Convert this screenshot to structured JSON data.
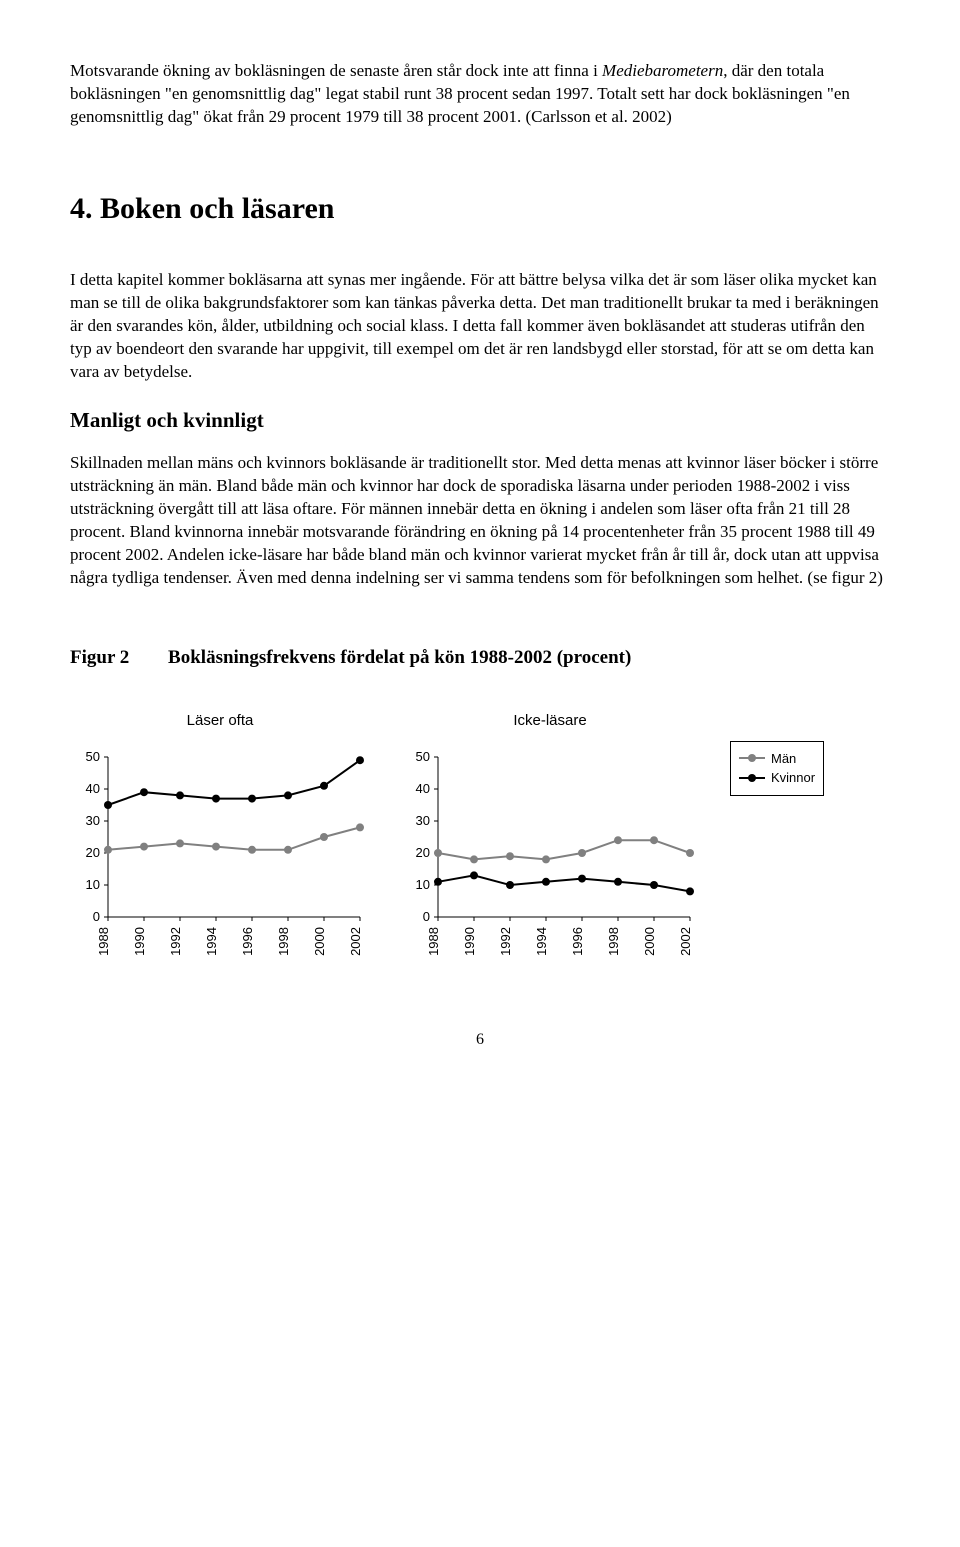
{
  "para1": "Motsvarande ökning av bokläsningen de senaste åren står dock inte att finna i ",
  "para1_italic": "Mediebarometern",
  "para1_after": ", där den totala bokläsningen \"en genomsnittlig dag\" legat stabil runt 38 procent sedan 1997. Totalt sett har dock bokläsningen \"en genomsnittlig dag\" ökat från 29 procent 1979 till 38 procent 2001. (Carlsson et al. 2002)",
  "section_title": "4. Boken och läsaren",
  "para2": "I detta kapitel kommer bokläsarna att synas mer ingående. För att bättre belysa vilka det är som läser olika mycket kan man se till de olika bakgrundsfaktorer som kan tänkas påverka detta. Det man traditionellt brukar ta med i beräkningen är den svarandes kön, ålder, utbildning och social klass. I detta fall kommer även bokläsandet att studeras utifrån den typ av boendeort den svarande har uppgivit, till exempel om det är ren landsbygd eller storstad, för att se om detta kan vara av betydelse.",
  "sub_title": "Manligt och kvinnligt",
  "para3": "Skillnaden mellan mäns och kvinnors bokläsande är traditionellt stor. Med detta menas att kvinnor läser böcker i större utsträckning än män. Bland både män och kvinnor har dock de sporadiska läsarna under perioden 1988-2002 i viss utsträckning övergått till att läsa oftare. För männen innebär detta en ökning i andelen som läser ofta från 21 till 28 procent. Bland kvinnorna innebär motsvarande förändring en ökning på 14 procentenheter från 35 procent 1988 till 49 procent 2002. Andelen icke-läsare har både bland män och kvinnor varierat mycket från år till år, dock utan att uppvisa några tydliga tendenser. Även med denna indelning ser vi samma tendens som för befolkningen som helhet. (se figur 2)",
  "figure_num": "Figur 2",
  "figure_title": "Bokläsningsfrekvens fördelat på kön 1988-2002 (procent)",
  "chart_left": {
    "type": "line",
    "title": "Läser ofta",
    "ylim": [
      0,
      50
    ],
    "ytick_step": 10,
    "x_labels": [
      "1988",
      "1990",
      "1992",
      "1994",
      "1996",
      "1998",
      "2000",
      "2002"
    ],
    "series": [
      {
        "name": "Män",
        "color": "#808080",
        "values": [
          21,
          22,
          23,
          22,
          21,
          21,
          25,
          28
        ]
      },
      {
        "name": "Kvinnor",
        "color": "#000000",
        "values": [
          35,
          39,
          38,
          37,
          37,
          38,
          41,
          49
        ]
      }
    ],
    "background_color": "#ffffff",
    "marker": "circle",
    "marker_size": 8,
    "line_width": 2,
    "font_family": "Arial",
    "tick_fontsize": 13
  },
  "chart_right": {
    "type": "line",
    "title": "Icke-läsare",
    "ylim": [
      0,
      50
    ],
    "ytick_step": 10,
    "x_labels": [
      "1988",
      "1990",
      "1992",
      "1994",
      "1996",
      "1998",
      "2000",
      "2002"
    ],
    "series": [
      {
        "name": "Män",
        "color": "#808080",
        "values": [
          20,
          18,
          19,
          18,
          20,
          24,
          24,
          20
        ]
      },
      {
        "name": "Kvinnor",
        "color": "#000000",
        "values": [
          11,
          13,
          10,
          11,
          12,
          11,
          10,
          8
        ]
      }
    ],
    "background_color": "#ffffff",
    "marker": "circle",
    "marker_size": 8,
    "line_width": 2,
    "font_family": "Arial",
    "tick_fontsize": 13
  },
  "legend": {
    "items": [
      {
        "label": "Män",
        "color": "#808080"
      },
      {
        "label": "Kvinnor",
        "color": "#000000"
      }
    ]
  },
  "page_number": "6"
}
